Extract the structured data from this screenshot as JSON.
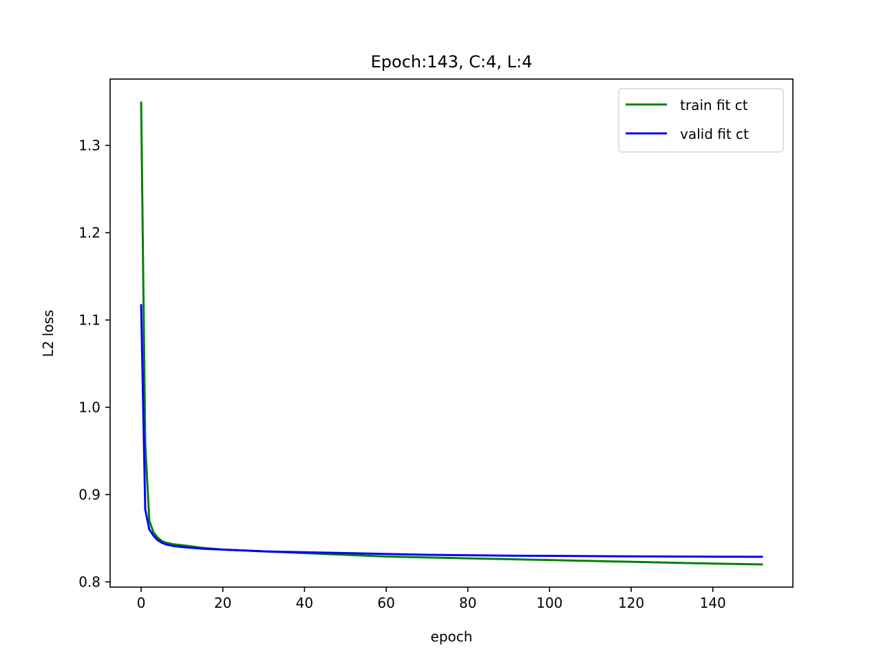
{
  "chart_data": {
    "type": "line",
    "title": "Epoch:143, C:4, L:4",
    "xlabel": "epoch",
    "ylabel": "L2 loss",
    "xlim": [
      -7.6,
      159.6
    ],
    "ylim": [
      0.794,
      1.376
    ],
    "xticks": [
      0,
      20,
      40,
      60,
      80,
      100,
      120,
      140
    ],
    "xtick_labels": [
      "0",
      "20",
      "40",
      "60",
      "80",
      "100",
      "120",
      "140"
    ],
    "yticks": [
      0.8,
      0.9,
      1.0,
      1.1,
      1.2,
      1.3
    ],
    "ytick_labels": [
      "0.8",
      "0.9",
      "1.0",
      "1.1",
      "1.2",
      "1.3"
    ],
    "grid": false,
    "legend_position": "top-right",
    "series": [
      {
        "name": "train fit ct",
        "color": "#008000",
        "x": [
          0,
          1,
          2,
          3,
          4,
          5,
          6,
          8,
          10,
          15,
          20,
          30,
          40,
          50,
          60,
          70,
          80,
          90,
          100,
          110,
          120,
          130,
          140,
          152
        ],
        "y": [
          1.349,
          0.958,
          0.87,
          0.857,
          0.851,
          0.847,
          0.845,
          0.843,
          0.842,
          0.839,
          0.837,
          0.835,
          0.833,
          0.831,
          0.829,
          0.828,
          0.827,
          0.826,
          0.825,
          0.824,
          0.823,
          0.822,
          0.821,
          0.82
        ]
      },
      {
        "name": "valid fit ct",
        "color": "#0000ff",
        "x": [
          0,
          1,
          2,
          3,
          4,
          5,
          6,
          8,
          10,
          15,
          20,
          30,
          40,
          50,
          60,
          70,
          80,
          90,
          100,
          110,
          120,
          130,
          140,
          152
        ],
        "y": [
          1.117,
          0.883,
          0.86,
          0.853,
          0.848,
          0.845,
          0.843,
          0.841,
          0.84,
          0.838,
          0.837,
          0.835,
          0.834,
          0.833,
          0.832,
          0.831,
          0.8305,
          0.83,
          0.8298,
          0.8295,
          0.8292,
          0.829,
          0.8289,
          0.8288
        ]
      }
    ]
  }
}
